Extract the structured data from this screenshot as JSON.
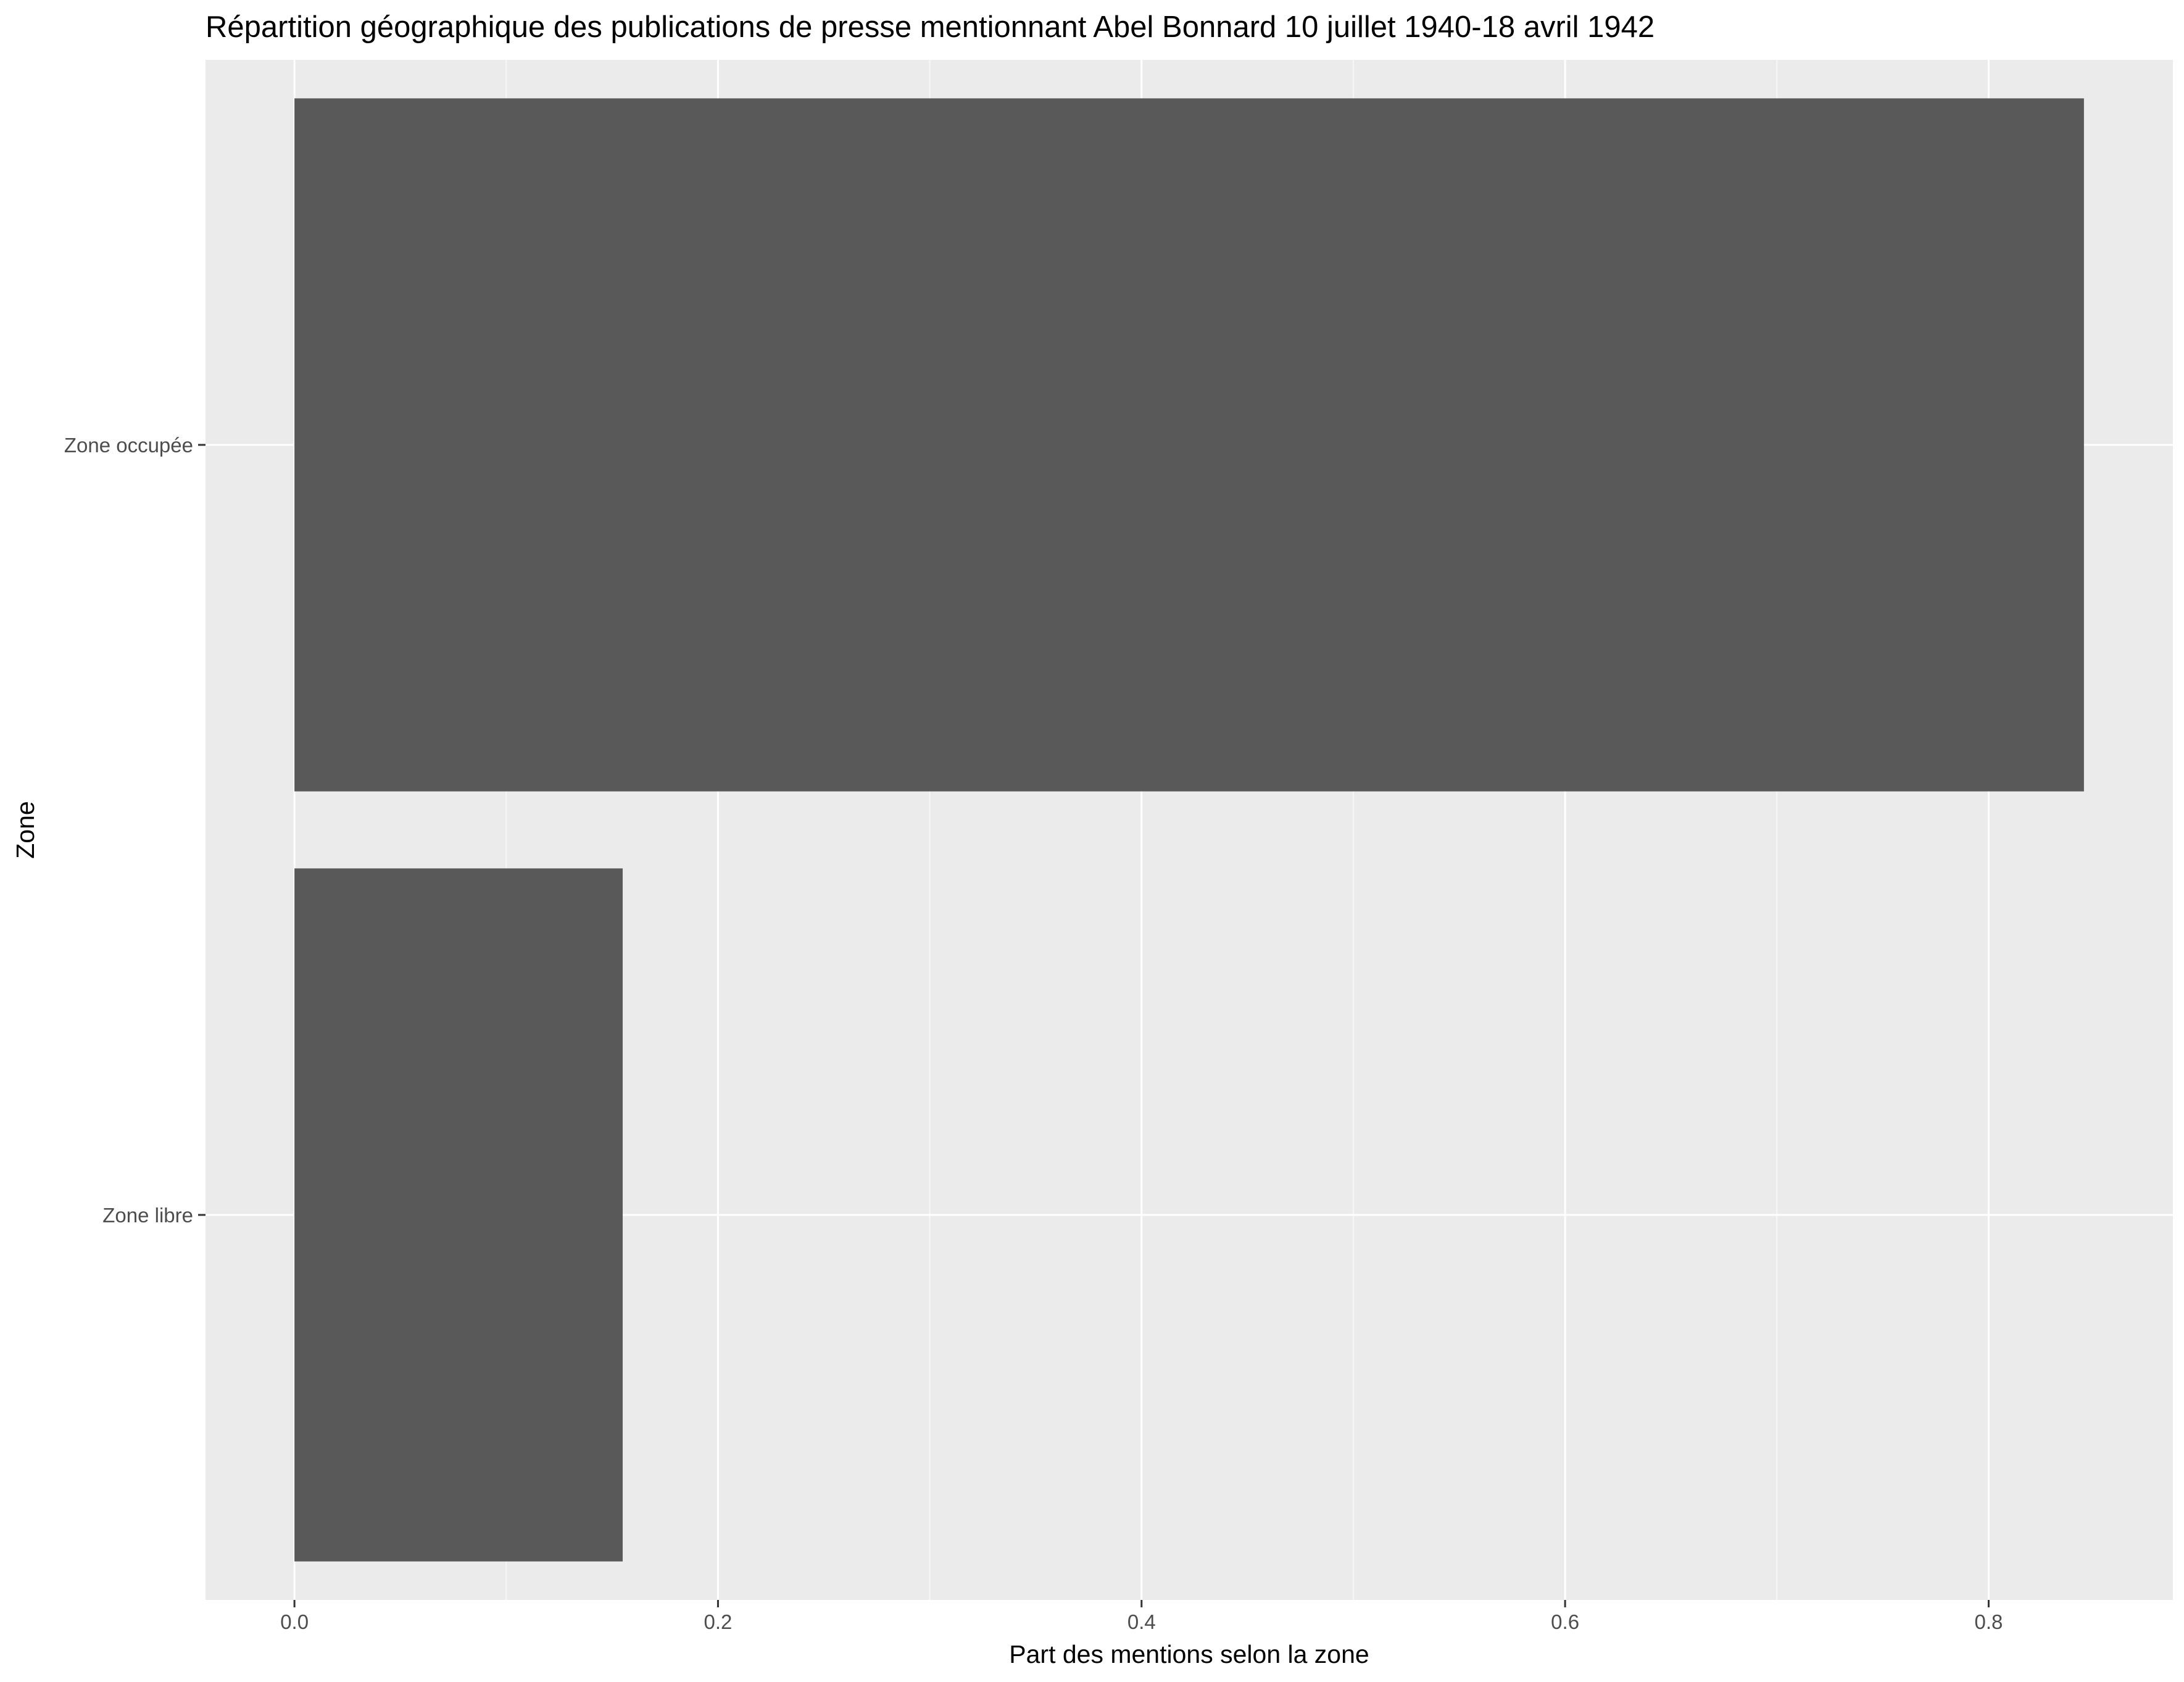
{
  "chart_data": {
    "type": "bar",
    "orientation": "horizontal",
    "title": "Répartition géographique des publications de presse mentionnant Abel Bonnard 10 juillet 1940-18 avril 1942",
    "xlabel": "Part des mentions selon la zone",
    "ylabel": "Zone",
    "categories": [
      "Zone occupée",
      "Zone libre"
    ],
    "values": [
      0.845,
      0.155
    ],
    "xlim": [
      -0.042,
      0.887
    ],
    "x_ticks": [
      0.0,
      0.2,
      0.4,
      0.6,
      0.8
    ],
    "x_tick_labels": [
      "0.0",
      "0.2",
      "0.4",
      "0.6",
      "0.8"
    ],
    "x_minor_ticks": [
      0.1,
      0.3,
      0.5,
      0.7
    ],
    "grid": true,
    "legend": "none",
    "colors": {
      "bar": "#595959",
      "panel": "#ebebeb",
      "grid_major": "#ffffff",
      "grid_minor": "#f7f7f7",
      "tick_text": "#4d4d4d",
      "axis_tick": "#333333",
      "title_text": "#000000"
    }
  }
}
